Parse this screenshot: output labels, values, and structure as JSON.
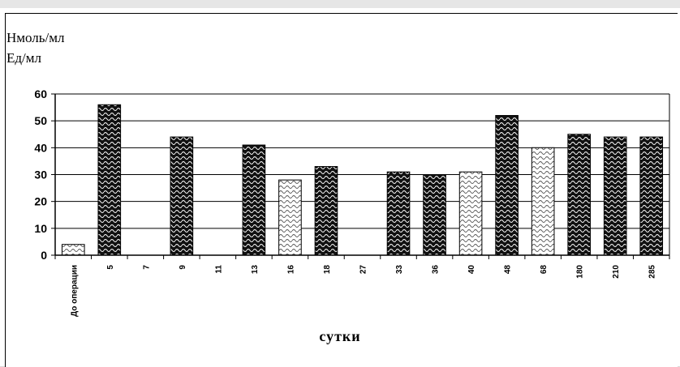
{
  "chart_data": {
    "type": "bar",
    "title": "",
    "ylabel_lines": [
      "Нмоль/мл",
      "Ед/мл"
    ],
    "xlabel": "сутки",
    "ylim": [
      0,
      60
    ],
    "yticks": [
      0,
      10,
      20,
      30,
      40,
      50,
      60
    ],
    "grid": true,
    "categories": [
      "До операции",
      "5",
      "7",
      "9",
      "11",
      "13",
      "16",
      "18",
      "27",
      "33",
      "36",
      "40",
      "48",
      "68",
      "180",
      "210",
      "285"
    ],
    "values": [
      4,
      56,
      null,
      44,
      null,
      41,
      28,
      33,
      null,
      31,
      30,
      31,
      52,
      40,
      45,
      44,
      44
    ],
    "patterns": [
      "light",
      "dark",
      null,
      "dark",
      null,
      "dark",
      "light",
      "dark",
      null,
      "dark",
      "dark",
      "light",
      "dark",
      "light",
      "dark",
      "dark",
      "dark"
    ]
  }
}
